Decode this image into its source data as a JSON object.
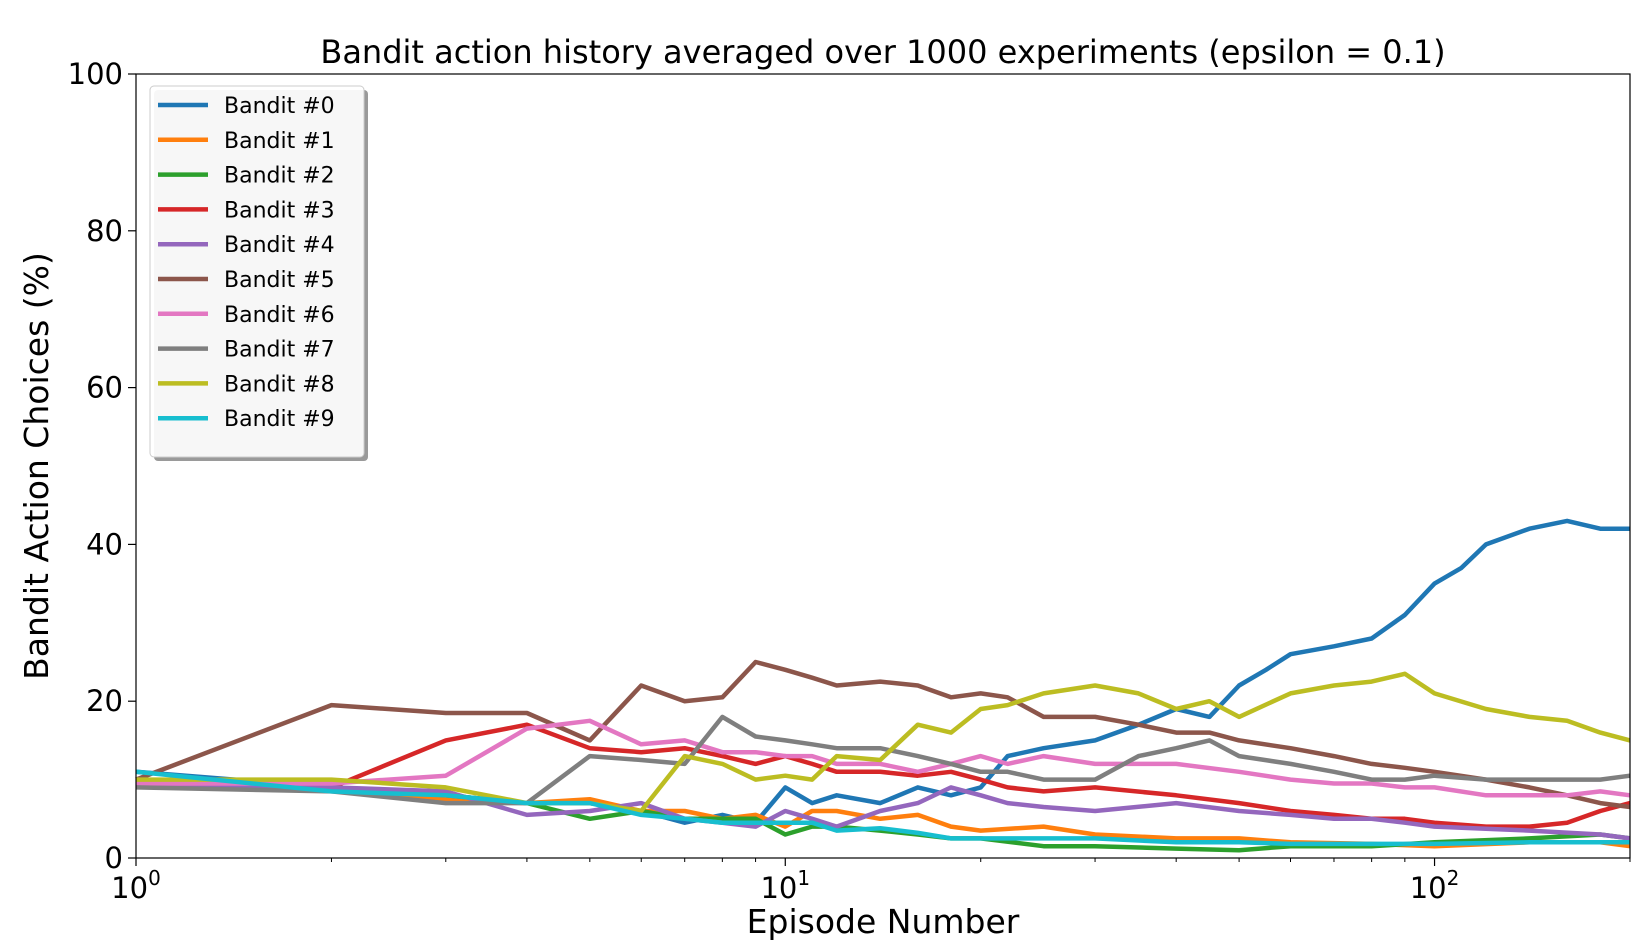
{
  "chart_data": {
    "type": "line",
    "title": "Bandit action history averaged over 1000 experiments (epsilon = 0.1)",
    "xlabel": "Episode Number",
    "ylabel": "Bandit Action Choices (%)",
    "xscale": "log",
    "xlim": [
      1,
      200
    ],
    "ylim": [
      0,
      100
    ],
    "x_ticks": [
      {
        "value": 1,
        "base": "10",
        "exp": "0"
      },
      {
        "value": 10,
        "base": "10",
        "exp": "1"
      },
      {
        "value": 100,
        "base": "10",
        "exp": "2"
      }
    ],
    "y_ticks": [
      0,
      20,
      40,
      60,
      80,
      100
    ],
    "grid": false,
    "legend_position": "upper-left",
    "series": [
      {
        "name": "Bandit #0",
        "color": "#1f77b4",
        "points": [
          [
            1,
            11
          ],
          [
            2,
            9
          ],
          [
            3,
            8
          ],
          [
            4,
            7
          ],
          [
            5,
            7
          ],
          [
            6,
            6
          ],
          [
            7,
            4.5
          ],
          [
            8,
            5.5
          ],
          [
            9,
            4.5
          ],
          [
            10,
            9
          ],
          [
            11,
            7
          ],
          [
            12,
            8
          ],
          [
            14,
            7
          ],
          [
            16,
            9
          ],
          [
            18,
            8
          ],
          [
            20,
            9
          ],
          [
            22,
            13
          ],
          [
            25,
            14
          ],
          [
            30,
            15
          ],
          [
            35,
            17
          ],
          [
            40,
            19
          ],
          [
            45,
            18
          ],
          [
            50,
            22
          ],
          [
            55,
            24
          ],
          [
            60,
            26
          ],
          [
            70,
            27
          ],
          [
            80,
            28
          ],
          [
            90,
            31
          ],
          [
            100,
            35
          ],
          [
            110,
            37
          ],
          [
            120,
            40
          ],
          [
            140,
            42
          ],
          [
            160,
            43
          ],
          [
            180,
            42
          ],
          [
            200,
            42
          ]
        ]
      },
      {
        "name": "Bandit #1",
        "color": "#ff7f0e",
        "points": [
          [
            1,
            10
          ],
          [
            2,
            9
          ],
          [
            3,
            7.5
          ],
          [
            4,
            7
          ],
          [
            5,
            7.5
          ],
          [
            6,
            6
          ],
          [
            7,
            6
          ],
          [
            8,
            5
          ],
          [
            9,
            5.5
          ],
          [
            10,
            4
          ],
          [
            11,
            6
          ],
          [
            12,
            6
          ],
          [
            14,
            5
          ],
          [
            16,
            5.5
          ],
          [
            18,
            4
          ],
          [
            20,
            3.5
          ],
          [
            25,
            4
          ],
          [
            30,
            3
          ],
          [
            40,
            2.5
          ],
          [
            50,
            2.5
          ],
          [
            60,
            2
          ],
          [
            80,
            1.8
          ],
          [
            100,
            1.5
          ],
          [
            140,
            2
          ],
          [
            180,
            2
          ],
          [
            200,
            1.5
          ]
        ]
      },
      {
        "name": "Bandit #2",
        "color": "#2ca02c",
        "points": [
          [
            1,
            9.5
          ],
          [
            2,
            9
          ],
          [
            3,
            8
          ],
          [
            4,
            7
          ],
          [
            5,
            5
          ],
          [
            6,
            6
          ],
          [
            7,
            5
          ],
          [
            8,
            5
          ],
          [
            9,
            5
          ],
          [
            10,
            3
          ],
          [
            11,
            4
          ],
          [
            12,
            4
          ],
          [
            14,
            3.5
          ],
          [
            16,
            3
          ],
          [
            18,
            2.5
          ],
          [
            20,
            2.5
          ],
          [
            25,
            1.5
          ],
          [
            30,
            1.5
          ],
          [
            40,
            1.2
          ],
          [
            50,
            1
          ],
          [
            60,
            1.5
          ],
          [
            80,
            1.5
          ],
          [
            100,
            2
          ],
          [
            140,
            2.5
          ],
          [
            180,
            3
          ],
          [
            200,
            2.5
          ]
        ]
      },
      {
        "name": "Bandit #3",
        "color": "#d62728",
        "points": [
          [
            1,
            10
          ],
          [
            2,
            9
          ],
          [
            3,
            15
          ],
          [
            4,
            17
          ],
          [
            5,
            14
          ],
          [
            6,
            13.5
          ],
          [
            7,
            14
          ],
          [
            8,
            13
          ],
          [
            9,
            12
          ],
          [
            10,
            13
          ],
          [
            11,
            12
          ],
          [
            12,
            11
          ],
          [
            14,
            11
          ],
          [
            16,
            10.5
          ],
          [
            18,
            11
          ],
          [
            20,
            10
          ],
          [
            22,
            9
          ],
          [
            25,
            8.5
          ],
          [
            30,
            9
          ],
          [
            40,
            8
          ],
          [
            50,
            7
          ],
          [
            60,
            6
          ],
          [
            70,
            5.5
          ],
          [
            80,
            5
          ],
          [
            90,
            5
          ],
          [
            100,
            4.5
          ],
          [
            120,
            4
          ],
          [
            140,
            4
          ],
          [
            160,
            4.5
          ],
          [
            180,
            6
          ],
          [
            200,
            7
          ]
        ]
      },
      {
        "name": "Bandit #4",
        "color": "#9467bd",
        "points": [
          [
            1,
            9.5
          ],
          [
            2,
            9
          ],
          [
            3,
            8.5
          ],
          [
            4,
            5.5
          ],
          [
            5,
            6
          ],
          [
            6,
            7
          ],
          [
            7,
            5
          ],
          [
            8,
            4.5
          ],
          [
            9,
            4
          ],
          [
            10,
            6
          ],
          [
            11,
            5
          ],
          [
            12,
            4
          ],
          [
            14,
            6
          ],
          [
            16,
            7
          ],
          [
            18,
            9
          ],
          [
            20,
            8
          ],
          [
            22,
            7
          ],
          [
            25,
            6.5
          ],
          [
            30,
            6
          ],
          [
            40,
            7
          ],
          [
            50,
            6
          ],
          [
            60,
            5.5
          ],
          [
            70,
            5
          ],
          [
            80,
            5
          ],
          [
            90,
            4.5
          ],
          [
            100,
            4
          ],
          [
            140,
            3.5
          ],
          [
            180,
            3
          ],
          [
            200,
            2.5
          ]
        ]
      },
      {
        "name": "Bandit #5",
        "color": "#8c564b",
        "points": [
          [
            1,
            10
          ],
          [
            2,
            19.5
          ],
          [
            3,
            18.5
          ],
          [
            4,
            18.5
          ],
          [
            5,
            15
          ],
          [
            6,
            22
          ],
          [
            7,
            20
          ],
          [
            8,
            20.5
          ],
          [
            9,
            25
          ],
          [
            10,
            24
          ],
          [
            11,
            23
          ],
          [
            12,
            22
          ],
          [
            14,
            22.5
          ],
          [
            16,
            22
          ],
          [
            18,
            20.5
          ],
          [
            20,
            21
          ],
          [
            22,
            20.5
          ],
          [
            25,
            18
          ],
          [
            30,
            18
          ],
          [
            35,
            17
          ],
          [
            40,
            16
          ],
          [
            45,
            16
          ],
          [
            50,
            15
          ],
          [
            60,
            14
          ],
          [
            70,
            13
          ],
          [
            80,
            12
          ],
          [
            90,
            11.5
          ],
          [
            100,
            11
          ],
          [
            120,
            10
          ],
          [
            140,
            9
          ],
          [
            160,
            8
          ],
          [
            180,
            7
          ],
          [
            200,
            6.5
          ]
        ]
      },
      {
        "name": "Bandit #6",
        "color": "#e377c2",
        "points": [
          [
            1,
            9.5
          ],
          [
            2,
            9.5
          ],
          [
            3,
            10.5
          ],
          [
            4,
            16.5
          ],
          [
            5,
            17.5
          ],
          [
            6,
            14.5
          ],
          [
            7,
            15
          ],
          [
            8,
            13.5
          ],
          [
            9,
            13.5
          ],
          [
            10,
            13
          ],
          [
            11,
            13
          ],
          [
            12,
            12
          ],
          [
            14,
            12
          ],
          [
            16,
            11
          ],
          [
            18,
            12
          ],
          [
            20,
            13
          ],
          [
            22,
            12
          ],
          [
            25,
            13
          ],
          [
            30,
            12
          ],
          [
            40,
            12
          ],
          [
            50,
            11
          ],
          [
            60,
            10
          ],
          [
            70,
            9.5
          ],
          [
            80,
            9.5
          ],
          [
            90,
            9
          ],
          [
            100,
            9
          ],
          [
            120,
            8
          ],
          [
            140,
            8
          ],
          [
            160,
            8
          ],
          [
            180,
            8.5
          ],
          [
            200,
            8
          ]
        ]
      },
      {
        "name": "Bandit #7",
        "color": "#7f7f7f",
        "points": [
          [
            1,
            9
          ],
          [
            2,
            8.5
          ],
          [
            3,
            7
          ],
          [
            4,
            7
          ],
          [
            5,
            13
          ],
          [
            6,
            12.5
          ],
          [
            7,
            12
          ],
          [
            8,
            18
          ],
          [
            9,
            15.5
          ],
          [
            10,
            15
          ],
          [
            11,
            14.5
          ],
          [
            12,
            14
          ],
          [
            14,
            14
          ],
          [
            16,
            13
          ],
          [
            18,
            12
          ],
          [
            20,
            11
          ],
          [
            22,
            11
          ],
          [
            25,
            10
          ],
          [
            30,
            10
          ],
          [
            35,
            13
          ],
          [
            40,
            14
          ],
          [
            45,
            15
          ],
          [
            50,
            13
          ],
          [
            60,
            12
          ],
          [
            70,
            11
          ],
          [
            80,
            10
          ],
          [
            90,
            10
          ],
          [
            100,
            10.5
          ],
          [
            120,
            10
          ],
          [
            140,
            10
          ],
          [
            160,
            10
          ],
          [
            180,
            10
          ],
          [
            200,
            10.5
          ]
        ]
      },
      {
        "name": "Bandit #8",
        "color": "#bcbd22",
        "points": [
          [
            1,
            10
          ],
          [
            2,
            10
          ],
          [
            3,
            9
          ],
          [
            4,
            7
          ],
          [
            5,
            7
          ],
          [
            6,
            6
          ],
          [
            7,
            13
          ],
          [
            8,
            12
          ],
          [
            9,
            10
          ],
          [
            10,
            10.5
          ],
          [
            11,
            10
          ],
          [
            12,
            13
          ],
          [
            14,
            12.5
          ],
          [
            16,
            17
          ],
          [
            18,
            16
          ],
          [
            20,
            19
          ],
          [
            22,
            19.5
          ],
          [
            25,
            21
          ],
          [
            30,
            22
          ],
          [
            35,
            21
          ],
          [
            40,
            19
          ],
          [
            45,
            20
          ],
          [
            50,
            18
          ],
          [
            60,
            21
          ],
          [
            70,
            22
          ],
          [
            80,
            22.5
          ],
          [
            90,
            23.5
          ],
          [
            100,
            21
          ],
          [
            120,
            19
          ],
          [
            140,
            18
          ],
          [
            160,
            17.5
          ],
          [
            180,
            16
          ],
          [
            200,
            15
          ]
        ]
      },
      {
        "name": "Bandit #9",
        "color": "#17becf",
        "points": [
          [
            1,
            11
          ],
          [
            2,
            8.5
          ],
          [
            3,
            8
          ],
          [
            4,
            7
          ],
          [
            5,
            7
          ],
          [
            6,
            5.5
          ],
          [
            7,
            5
          ],
          [
            8,
            4.5
          ],
          [
            9,
            4.5
          ],
          [
            10,
            4.5
          ],
          [
            11,
            4.5
          ],
          [
            12,
            3.5
          ],
          [
            14,
            3.8
          ],
          [
            16,
            3.2
          ],
          [
            18,
            2.5
          ],
          [
            20,
            2.5
          ],
          [
            25,
            2.5
          ],
          [
            30,
            2.5
          ],
          [
            40,
            2
          ],
          [
            50,
            2
          ],
          [
            60,
            1.8
          ],
          [
            80,
            1.8
          ],
          [
            100,
            1.8
          ],
          [
            140,
            2
          ],
          [
            180,
            2
          ],
          [
            200,
            2
          ]
        ]
      }
    ]
  }
}
